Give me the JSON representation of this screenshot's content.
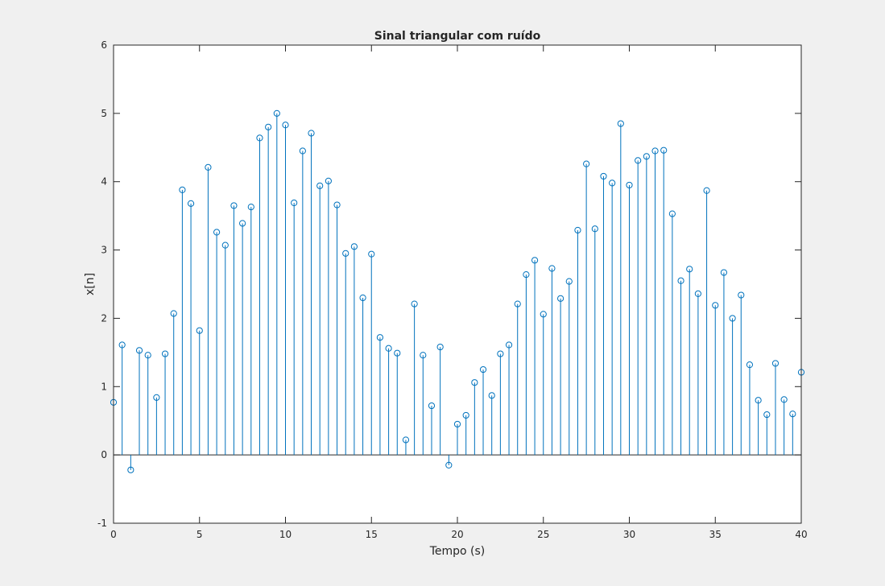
{
  "chart_data": {
    "type": "stem",
    "title": "Sinal triangular com ruído",
    "xlabel": "Tempo (s)",
    "ylabel": "x[n]",
    "xlim": [
      0,
      40
    ],
    "ylim": [
      -1,
      6
    ],
    "xticks": [
      "0",
      "5",
      "10",
      "15",
      "20",
      "25",
      "30",
      "35",
      "40"
    ],
    "yticks": [
      "-1",
      "0",
      "1",
      "2",
      "3",
      "4",
      "5",
      "6"
    ],
    "grid": false,
    "legend": "none",
    "color": "#0072bd",
    "series": [
      {
        "x": [
          0,
          0.5,
          1,
          1.5,
          2,
          2.5,
          3,
          3.5,
          4,
          4.5,
          5,
          5.5,
          6,
          6.5,
          7,
          7.5,
          8,
          8.5,
          9,
          9.5,
          10,
          10.5,
          11,
          11.5,
          12,
          12.5,
          13,
          13.5,
          14,
          14.5,
          15,
          15.5,
          16,
          16.5,
          17,
          17.5,
          18,
          18.5,
          19,
          19.5,
          20,
          20.5,
          21,
          21.5,
          22,
          22.5,
          23,
          23.5,
          24,
          24.5,
          25,
          25.5,
          26,
          26.5,
          27,
          27.5,
          28,
          28.5,
          29,
          29.5,
          30,
          30.5,
          31,
          31.5,
          32,
          32.5,
          33,
          33.5,
          34,
          34.5,
          35,
          35.5,
          36,
          36.5,
          37,
          37.5,
          38,
          38.5,
          39,
          39.5,
          40
        ],
        "values": [
          0.77,
          1.61,
          -0.22,
          1.53,
          1.46,
          0.84,
          1.48,
          2.07,
          3.88,
          3.68,
          1.82,
          4.21,
          3.26,
          3.07,
          3.65,
          3.39,
          3.63,
          4.64,
          4.8,
          5.0,
          4.83,
          3.69,
          4.45,
          4.71,
          3.94,
          4.01,
          3.66,
          2.95,
          3.05,
          2.3,
          2.94,
          1.72,
          1.56,
          1.49,
          0.22,
          2.21,
          1.46,
          0.72,
          1.58,
          -0.15,
          0.45,
          0.58,
          1.06,
          1.25,
          0.87,
          1.48,
          1.61,
          2.21,
          2.64,
          2.85,
          2.06,
          2.73,
          2.29,
          2.54,
          3.29,
          4.26,
          3.31,
          4.08,
          3.98,
          4.85,
          3.95,
          4.31,
          4.37,
          4.45,
          4.46,
          3.53,
          2.55,
          2.72,
          2.36,
          3.87,
          2.19,
          2.67,
          2.0,
          2.34,
          1.32,
          0.8,
          0.59,
          1.34,
          0.81,
          0.6,
          1.21
        ]
      }
    ]
  }
}
